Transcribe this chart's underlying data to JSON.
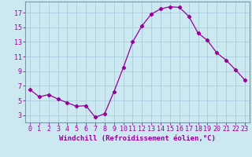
{
  "x": [
    0,
    1,
    2,
    3,
    4,
    5,
    6,
    7,
    8,
    9,
    10,
    11,
    12,
    13,
    14,
    15,
    16,
    17,
    18,
    19,
    20,
    21,
    22,
    23
  ],
  "y": [
    6.5,
    5.5,
    5.8,
    5.2,
    4.7,
    4.2,
    4.3,
    2.7,
    3.2,
    6.2,
    9.5,
    13.0,
    15.2,
    16.8,
    17.5,
    17.8,
    17.7,
    16.5,
    14.2,
    13.2,
    11.5,
    10.5,
    9.2,
    7.8
  ],
  "line_color": "#990099",
  "marker": "D",
  "marker_size": 2.2,
  "bg_color": "#cce8f0",
  "grid_color": "#aaccdd",
  "xlabel": "Windchill (Refroidissement éolien,°C)",
  "ylabel_ticks": [
    3,
    5,
    7,
    9,
    11,
    13,
    15,
    17
  ],
  "xlim": [
    -0.5,
    23.5
  ],
  "ylim": [
    2.0,
    18.5
  ],
  "tick_color": "#990099",
  "label_color": "#990099",
  "xlabel_fontsize": 6.5,
  "tick_fontsize": 6.0,
  "spine_color": "#7799aa"
}
